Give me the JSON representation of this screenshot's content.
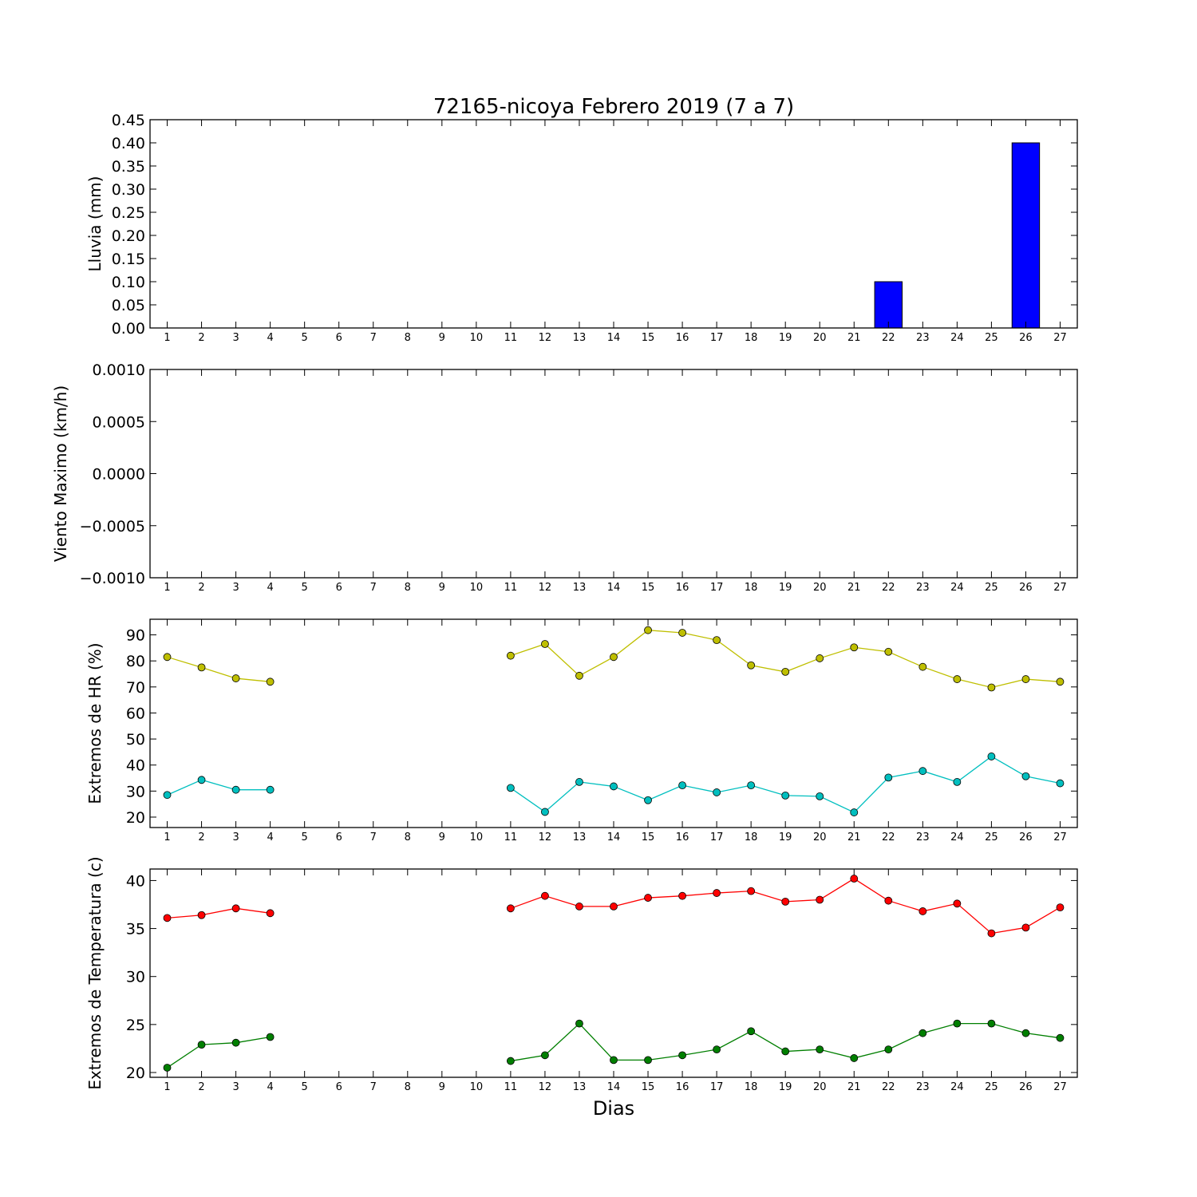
{
  "title": "72165-nicoya Febrero 2019  (7 a 7)",
  "xlabel": "Dias",
  "x_ticks": [
    1,
    2,
    3,
    4,
    5,
    6,
    7,
    8,
    9,
    10,
    11,
    12,
    13,
    14,
    15,
    16,
    17,
    18,
    19,
    20,
    21,
    22,
    23,
    24,
    25,
    26,
    27
  ],
  "chart_data": [
    {
      "type": "bar",
      "ylabel": "Lluvia (mm)",
      "ylim": [
        0,
        0.45
      ],
      "yticks": [
        "0.00",
        "0.05",
        "0.10",
        "0.15",
        "0.20",
        "0.25",
        "0.30",
        "0.35",
        "0.40",
        "0.45"
      ],
      "categories": [
        1,
        2,
        3,
        4,
        5,
        6,
        7,
        8,
        9,
        10,
        11,
        12,
        13,
        14,
        15,
        16,
        17,
        18,
        19,
        20,
        21,
        22,
        23,
        24,
        25,
        26,
        27
      ],
      "values": [
        0,
        0,
        0,
        0,
        null,
        null,
        null,
        null,
        null,
        null,
        0,
        0,
        0,
        0,
        0,
        0,
        0,
        0,
        0,
        0,
        0,
        0.1,
        0,
        0,
        0,
        0.4,
        0
      ],
      "color": "#0000ff"
    },
    {
      "type": "line",
      "ylabel": "Viento Maximo (km/h)",
      "ylim": [
        -0.001,
        0.001
      ],
      "yticks": [
        "−0.0010",
        "−0.0005",
        "0.0000",
        "0.0005",
        "0.0010"
      ],
      "series": []
    },
    {
      "type": "line",
      "ylabel": "Extremos de HR (%)",
      "ylim": [
        16,
        96
      ],
      "yticks": [
        "20",
        "30",
        "40",
        "50",
        "60",
        "70",
        "80",
        "90"
      ],
      "series": [
        {
          "color": "#bfbf00",
          "x": [
            1,
            2,
            3,
            4,
            11,
            12,
            13,
            14,
            15,
            16,
            17,
            18,
            19,
            20,
            21,
            22,
            23,
            24,
            25,
            26,
            27
          ],
          "values": [
            81.5,
            77.5,
            73.3,
            72,
            82,
            86.5,
            74.3,
            81.5,
            91.8,
            90.8,
            88,
            78.3,
            75.8,
            81,
            85.2,
            83.5,
            77.7,
            73,
            69.8,
            73,
            72
          ]
        },
        {
          "color": "#00bfbf",
          "x": [
            1,
            2,
            3,
            4,
            11,
            12,
            13,
            14,
            15,
            16,
            17,
            18,
            19,
            20,
            21,
            22,
            23,
            24,
            25,
            26,
            27
          ],
          "values": [
            28.5,
            34.3,
            30.5,
            30.5,
            31.2,
            22,
            33.5,
            31.8,
            26.5,
            32.2,
            29.5,
            32.2,
            28.3,
            28,
            21.8,
            35.2,
            37.7,
            33.5,
            43.3,
            35.7,
            33
          ]
        }
      ]
    },
    {
      "type": "line",
      "ylabel": "Extremos de Temperatura (c)",
      "ylim": [
        19.5,
        41.2
      ],
      "yticks": [
        "20",
        "25",
        "30",
        "35",
        "40"
      ],
      "series": [
        {
          "color": "#ff0000",
          "x": [
            1,
            2,
            3,
            4,
            11,
            12,
            13,
            14,
            15,
            16,
            17,
            18,
            19,
            20,
            21,
            22,
            23,
            24,
            25,
            26,
            27
          ],
          "values": [
            36.1,
            36.4,
            37.1,
            36.6,
            37.1,
            38.4,
            37.3,
            37.3,
            38.2,
            38.4,
            38.7,
            38.9,
            37.8,
            38,
            40.2,
            37.9,
            36.8,
            37.6,
            34.5,
            35.1,
            37.2
          ]
        },
        {
          "color": "#007f00",
          "x": [
            1,
            2,
            3,
            4,
            11,
            12,
            13,
            14,
            15,
            16,
            17,
            18,
            19,
            20,
            21,
            22,
            23,
            24,
            25,
            26,
            27
          ],
          "values": [
            20.5,
            22.9,
            23.1,
            23.7,
            21.2,
            21.8,
            25.1,
            21.3,
            21.3,
            21.8,
            22.4,
            24.3,
            22.2,
            22.4,
            21.5,
            22.4,
            24.1,
            25.1,
            25.1,
            24.1,
            23.6
          ]
        }
      ]
    }
  ]
}
